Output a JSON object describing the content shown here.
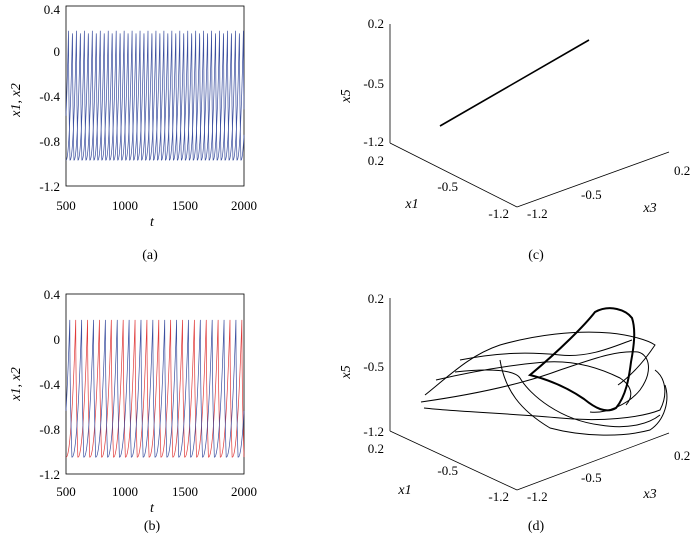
{
  "captions": [
    "(a)",
    "(b)",
    "(c)",
    "(d)"
  ],
  "chart_data": [
    {
      "panel": "(a)",
      "type": "line",
      "xlabel": "t",
      "ylabel": "x1, x2",
      "xlim": [
        500,
        2000
      ],
      "ylim": [
        -1.2,
        0.4
      ],
      "xticks": [
        "500",
        "1000",
        "1500",
        "2000"
      ],
      "yticks": [
        "0.4",
        "0",
        "-0.4",
        "-0.8",
        "-1.2"
      ],
      "series": [
        {
          "color": "#3b4fa0",
          "period": 67,
          "phase": 0,
          "max": 0.2,
          "min": -0.97
        },
        {
          "color": "#3b4fa0",
          "period": 67,
          "phase": 0.5,
          "max": 0.2,
          "min": -0.97
        }
      ]
    },
    {
      "panel": "(b)",
      "type": "line",
      "xlabel": "t",
      "ylabel": "x1, x2",
      "xlim": [
        500,
        2000
      ],
      "ylim": [
        -1.2,
        0.4
      ],
      "xticks": [
        "500",
        "1000",
        "1500",
        "2000"
      ],
      "yticks": [
        "0.4",
        "0",
        "-0.4",
        "-0.8",
        "-1.2"
      ],
      "series": [
        {
          "color": "#e03a3a",
          "period": 100,
          "phase": 0.0,
          "max": 0.17,
          "min": -1.05
        },
        {
          "color": "#3b4fa0",
          "period": 100,
          "phase": 0.5,
          "max": 0.17,
          "min": -1.05
        }
      ]
    },
    {
      "panel": "(c)",
      "type": "line3d",
      "xlabel": "x1",
      "ylabel": "x3",
      "zlabel": "x5",
      "xlim": [
        -1.2,
        0.2
      ],
      "ylim": [
        -1.2,
        0.2
      ],
      "zlim": [
        -1.2,
        0.2
      ],
      "x1ticks": [
        "0.2",
        "-0.5",
        "-1.2"
      ],
      "x3ticks": [
        "-1.2",
        "-0.5",
        "0.2"
      ],
      "x5ticks": [
        "0.2",
        "-0.5",
        "-1.2"
      ],
      "line": {
        "from": [
          0.2,
          0.2,
          -0.9
        ],
        "to": [
          -1.2,
          -1.2,
          0.1
        ]
      }
    },
    {
      "panel": "(d)",
      "type": "line3d",
      "xlabel": "x1",
      "ylabel": "x3",
      "zlabel": "x5",
      "xlim": [
        -1.2,
        0.2
      ],
      "ylim": [
        -1.2,
        0.2
      ],
      "zlim": [
        -1.2,
        0.2
      ],
      "x1ticks": [
        "0.2",
        "-0.5",
        "-1.2"
      ],
      "x3ticks": [
        "-1.2",
        "-0.5",
        "0.2"
      ],
      "x5ticks": [
        "0.2",
        "-0.5",
        "-1.2"
      ]
    }
  ]
}
